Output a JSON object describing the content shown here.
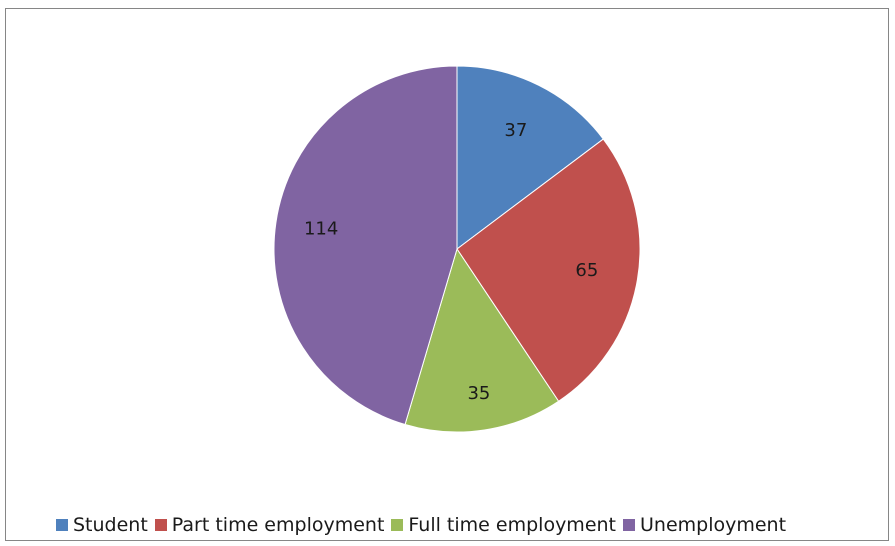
{
  "chart_data": {
    "type": "pie",
    "title": "",
    "categories": [
      "Student",
      "Part time employment",
      "Full time employment",
      "Unemployment"
    ],
    "values": [
      37,
      65,
      35,
      114
    ],
    "data_labels": [
      "37",
      "65",
      "35",
      "114"
    ],
    "colors": [
      "#4f81bd",
      "#c0504d",
      "#9bbb59",
      "#8064a2"
    ],
    "start_angle": "12 o'clock",
    "direction": "clockwise",
    "legend_position": "bottom"
  }
}
